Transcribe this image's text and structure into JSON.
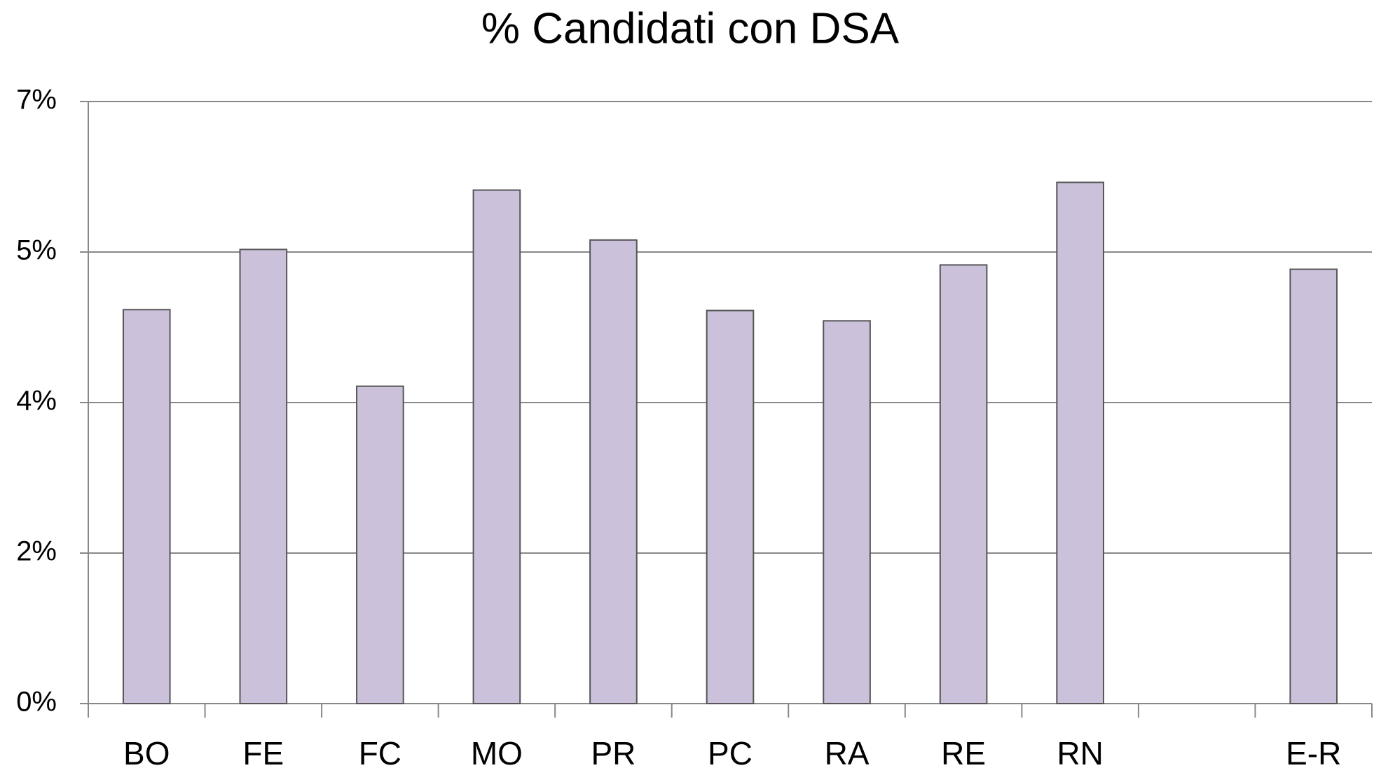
{
  "chart_data": {
    "type": "bar",
    "title": "% Candidati con DSA",
    "categories": [
      "BO",
      "FE",
      "FC",
      "MO",
      "PR",
      "PC",
      "RA",
      "RE",
      "RN",
      null,
      "E-R"
    ],
    "values": [
      4.58,
      5.28,
      3.69,
      5.97,
      5.39,
      4.57,
      4.45,
      5.1,
      6.06,
      null,
      5.05
    ],
    "color": "#ccc1da",
    "ylim": [
      0,
      7
    ],
    "yticks": [
      {
        "value": 0,
        "label": "0%"
      },
      {
        "value": 1.75,
        "label": "2%"
      },
      {
        "value": 3.5,
        "label": "4%"
      },
      {
        "value": 5.25,
        "label": "5%"
      },
      {
        "value": 7,
        "label": "7%"
      }
    ],
    "grid": true
  }
}
